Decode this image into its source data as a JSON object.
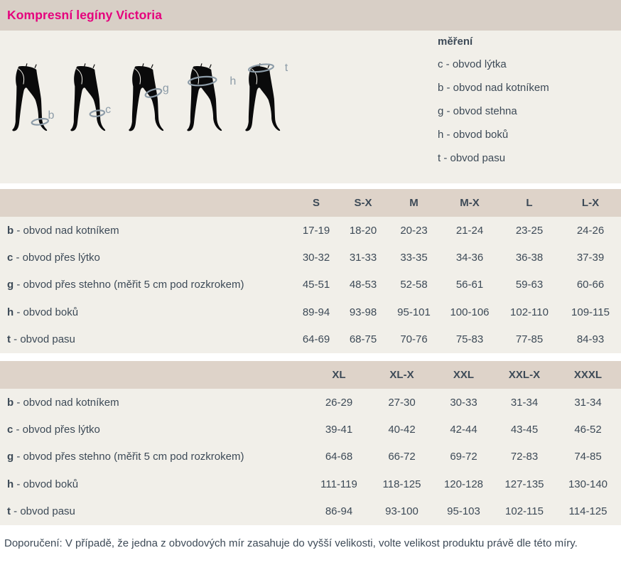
{
  "title": "Kompresní legíny Victoria",
  "legend": {
    "heading": "měření",
    "items": [
      "c - obvod lýtka",
      "b - obvod nad kotníkem",
      "g - obvod stehna",
      "h - obvod boků",
      "t - obvod pasu"
    ]
  },
  "figures": [
    {
      "label": "b"
    },
    {
      "label": "c"
    },
    {
      "label": "g"
    },
    {
      "label": "h"
    },
    {
      "label": "t"
    }
  ],
  "tables": [
    {
      "sizes": [
        "S",
        "S-X",
        "M",
        "M-X",
        "L",
        "L-X"
      ],
      "rows": [
        {
          "key": "b",
          "label": "- obvod nad kotníkem",
          "values": [
            "17-19",
            "18-20",
            "20-23",
            "21-24",
            "23-25",
            "24-26"
          ]
        },
        {
          "key": "c",
          "label": "- obvod přes lýtko",
          "values": [
            "30-32",
            "31-33",
            "33-35",
            "34-36",
            "36-38",
            "37-39"
          ]
        },
        {
          "key": "g",
          "label": "- obvod přes stehno (měřit 5 cm pod rozkrokem)",
          "values": [
            "45-51",
            "48-53",
            "52-58",
            "56-61",
            "59-63",
            "60-66"
          ]
        },
        {
          "key": "h",
          "label": "- obvod boků",
          "values": [
            "89-94",
            "93-98",
            "95-101",
            "100-106",
            "102-110",
            "109-115"
          ]
        },
        {
          "key": "t",
          "label": "- obvod pasu",
          "values": [
            "64-69",
            "68-75",
            "70-76",
            "75-83",
            "77-85",
            "84-93"
          ]
        }
      ]
    },
    {
      "sizes": [
        "XL",
        "XL-X",
        "XXL",
        "XXL-X",
        "XXXL"
      ],
      "rows": [
        {
          "key": "b",
          "label": "- obvod nad kotníkem",
          "values": [
            "26-29",
            "27-30",
            "30-33",
            "31-34",
            "31-34"
          ]
        },
        {
          "key": "c",
          "label": "- obvod přes lýtko",
          "values": [
            "39-41",
            "40-42",
            "42-44",
            "43-45",
            "46-52"
          ]
        },
        {
          "key": "g",
          "label": "- obvod přes stehno (měřit 5 cm pod rozkrokem)",
          "values": [
            "64-68",
            "66-72",
            "69-72",
            "72-83",
            "74-85"
          ]
        },
        {
          "key": "h",
          "label": "- obvod boků",
          "values": [
            "111-119",
            "118-125",
            "120-128",
            "127-135",
            "130-140"
          ]
        },
        {
          "key": "t",
          "label": "- obvod pasu",
          "values": [
            "86-94",
            "93-100",
            "95-103",
            "102-115",
            "114-125"
          ]
        }
      ]
    }
  ],
  "footer": "Doporučení: V případě, že jedna z obvodových mír zasahuje do vyšší velikosti, volte velikost produktu právě dle této míry.",
  "colors": {
    "accent_pink": "#e5007d",
    "titlebar_tan": "#d8cfc6",
    "table_header_tan": "#ded3c9",
    "panel_cream": "#f1efe9",
    "text_dark": "#3d4a57",
    "measure_gray_blue": "#8d9ca8",
    "silhouette_black": "#0a0a0b"
  }
}
